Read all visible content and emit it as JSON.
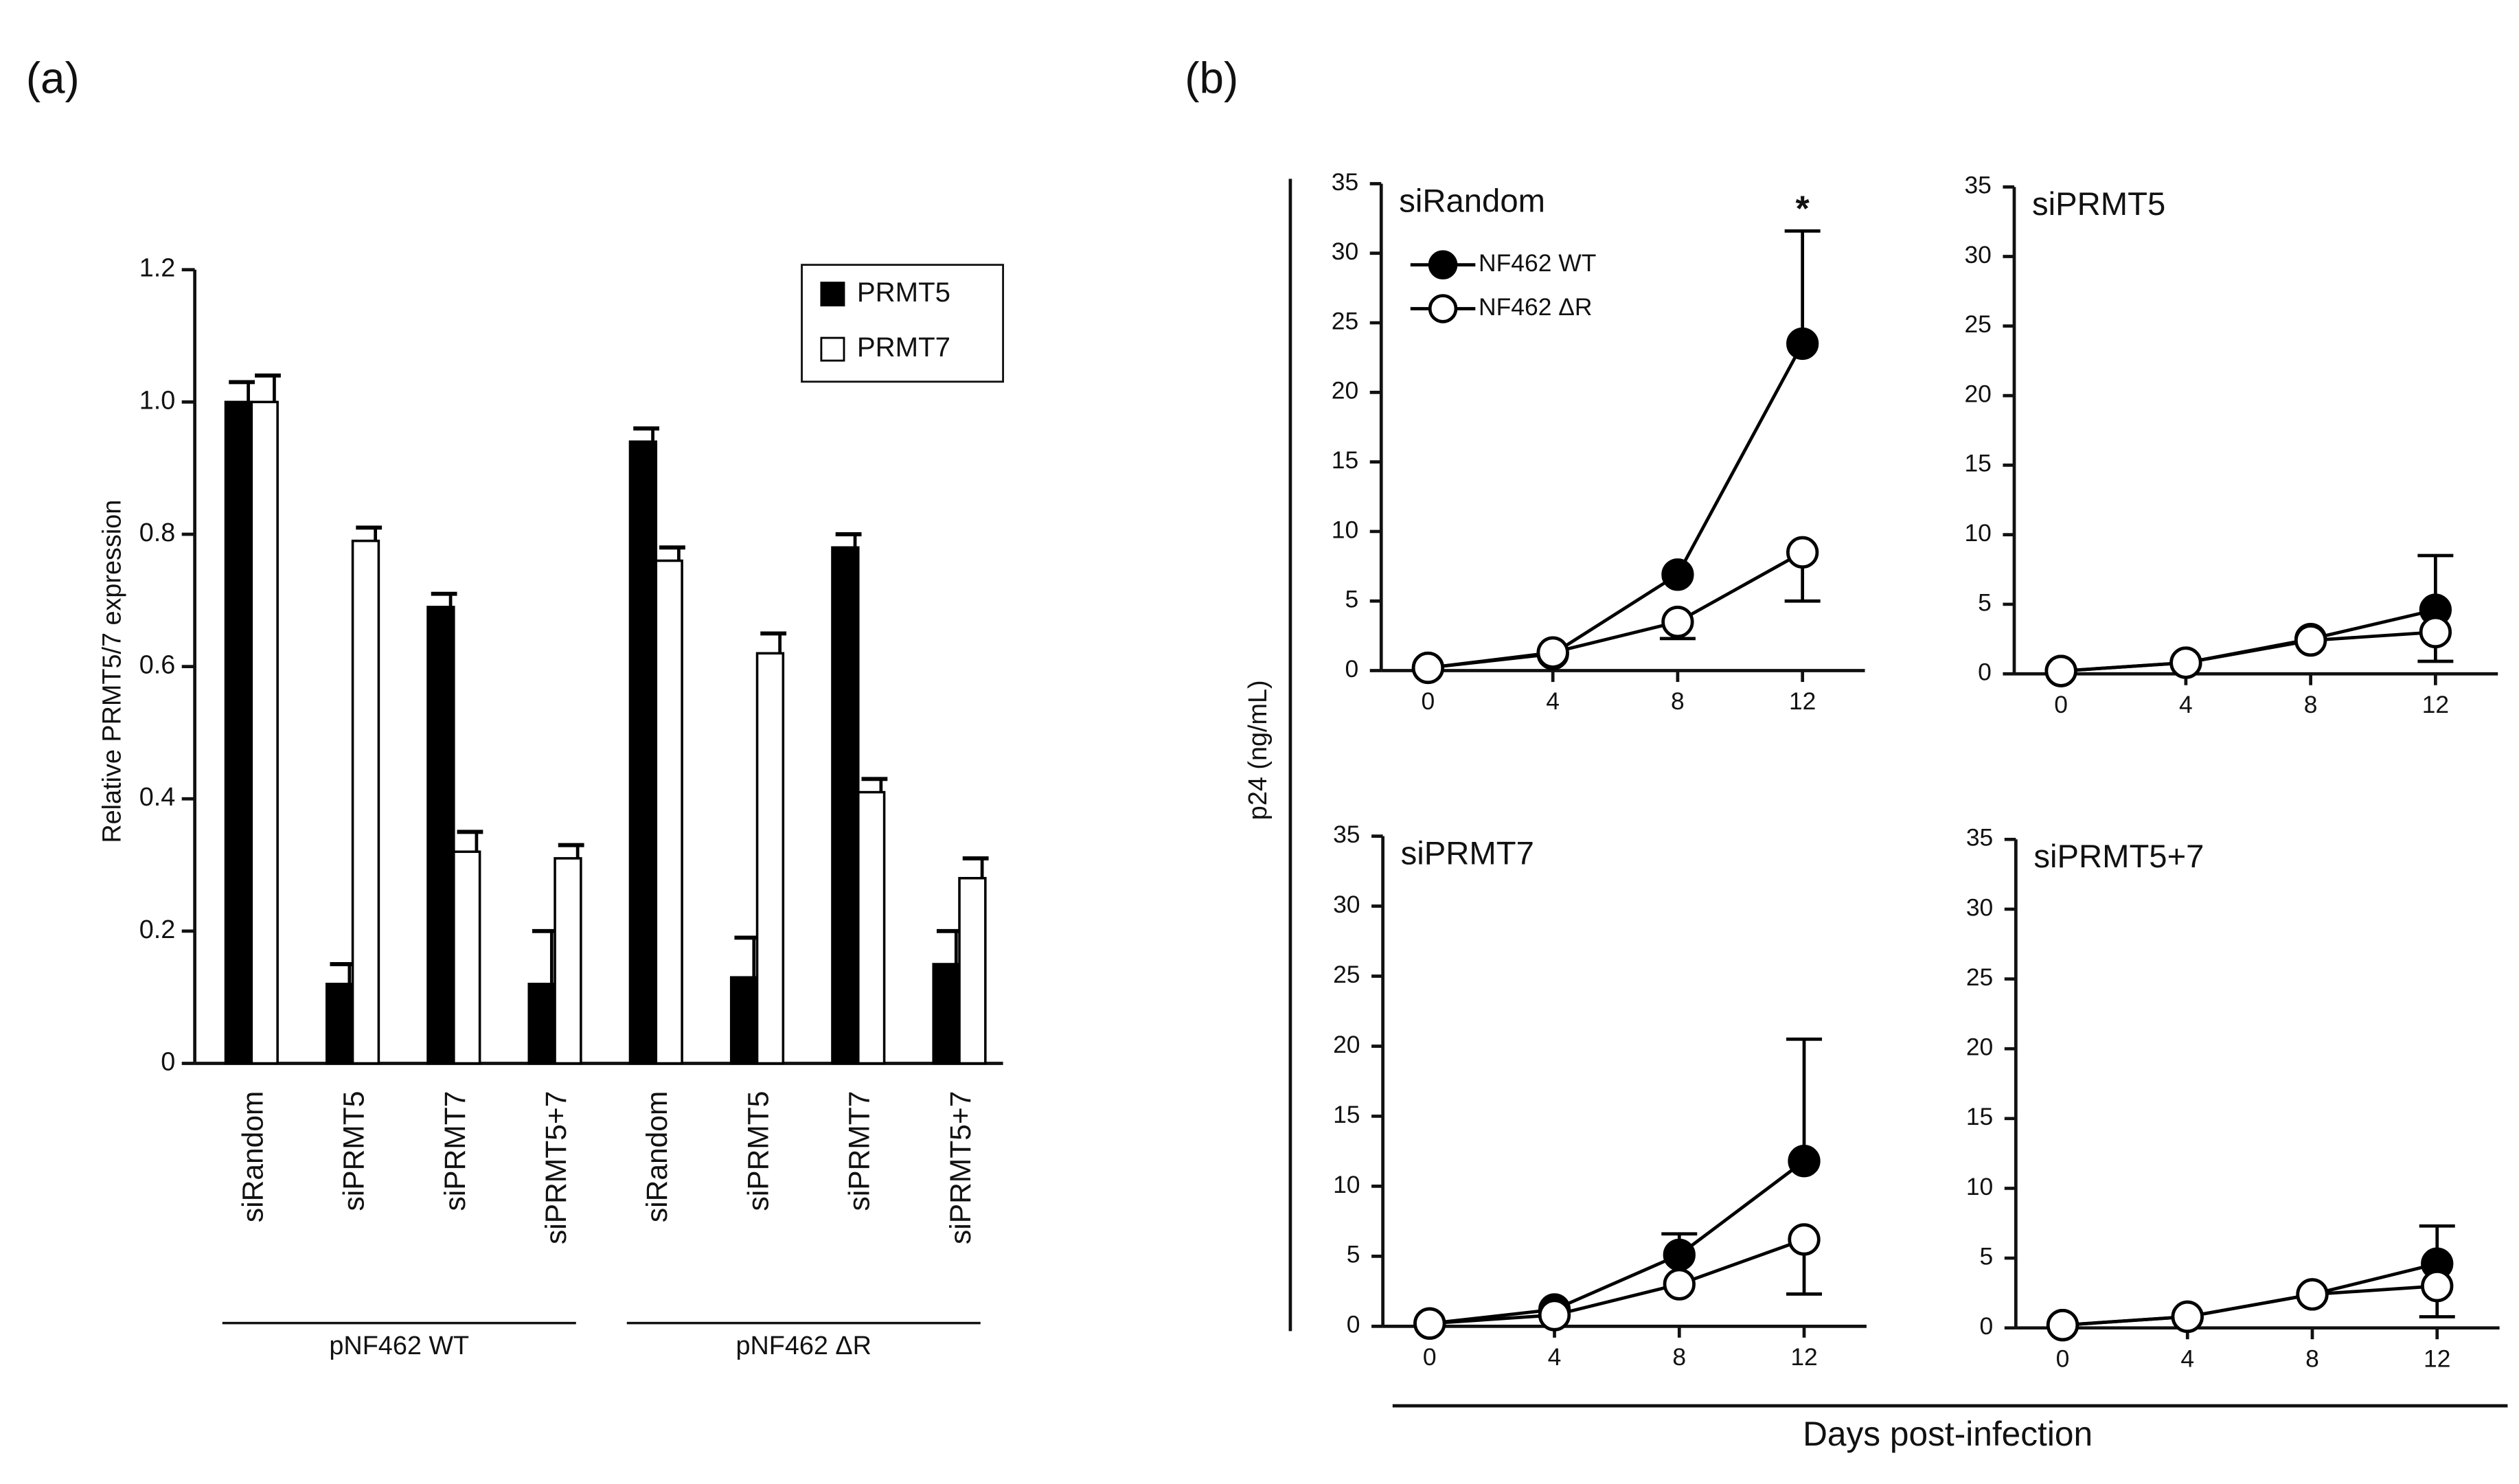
{
  "figure": {
    "panel_labels": [
      "(a)",
      "(b)"
    ],
    "ylabel": "p24 (ng/mL)",
    "xlabel": "Days post-infection"
  },
  "chart_data": [
    {
      "type": "bar",
      "ylabel": "Relative PRMT5/7 expression",
      "categories": [
        "siRandom",
        "siPRMT5",
        "siPRMT7",
        "siPRMT5+7",
        "siRandom",
        "siPRMT5",
        "siPRMT7",
        "siPRMT5+7"
      ],
      "groups": [
        "pNF462 WT",
        "pNF462 ΔR"
      ],
      "series": [
        {
          "name": "PRMT5",
          "color": "#000000",
          "values": [
            1.0,
            0.12,
            0.69,
            0.12,
            0.94,
            0.13,
            0.78,
            0.15
          ],
          "errors": [
            0.03,
            0.03,
            0.02,
            0.08,
            0.02,
            0.06,
            0.02,
            0.05
          ]
        },
        {
          "name": "PRMT7",
          "color": "#ffffff",
          "values": [
            1.0,
            0.79,
            0.32,
            0.31,
            0.76,
            0.62,
            0.41,
            0.28
          ],
          "errors": [
            0.04,
            0.02,
            0.03,
            0.02,
            0.02,
            0.03,
            0.02,
            0.03
          ]
        }
      ],
      "ylim": [
        0,
        1.2
      ],
      "yticks": [
        0,
        0.2,
        0.4,
        0.6,
        0.8,
        {
          "value": 1,
          "label": "1.0"
        },
        1.2
      ],
      "legend": "upper right"
    },
    {
      "type": "line",
      "title": "siRandom",
      "x": [
        0,
        4,
        8,
        12
      ],
      "annotations": [
        {
          "x": 12,
          "text": "*"
        }
      ],
      "series": [
        {
          "name": "NF462 WT",
          "color": "#000000",
          "values": [
            0.2,
            1.2,
            6.9,
            23.5
          ],
          "errors": [
            0,
            0,
            0,
            8.1
          ],
          "error_direction": "up"
        },
        {
          "name": "NF462 ΔR",
          "color": "#ffffff",
          "values": [
            0.2,
            1.3,
            3.5,
            8.5
          ],
          "errors": [
            0,
            0,
            1.2,
            3.5
          ],
          "error_direction": "down"
        }
      ],
      "xlim": [
        -1.5,
        14
      ],
      "xticks": [
        0,
        4,
        8,
        12
      ],
      "ylim": [
        0,
        35
      ],
      "yticks": [
        0,
        5,
        10,
        15,
        20,
        25,
        30,
        35
      ],
      "legend": "upper left"
    },
    {
      "type": "line",
      "title": "siPRMT5",
      "x": [
        0,
        4,
        8,
        12
      ],
      "series": [
        {
          "name": "NF462 WT",
          "color": "#000000",
          "values": [
            0.2,
            0.8,
            2.5,
            4.6
          ],
          "errors": [
            0,
            0,
            0,
            3.9
          ],
          "error_direction": "up"
        },
        {
          "name": "NF462 ΔR",
          "color": "#ffffff",
          "values": [
            0.2,
            0.8,
            2.4,
            3.0
          ],
          "errors": [
            0,
            0,
            0,
            2.1
          ],
          "error_direction": "down"
        }
      ],
      "xlim": [
        -1.5,
        14
      ],
      "xticks": [
        0,
        4,
        8,
        12
      ],
      "ylim": [
        0,
        35
      ],
      "yticks": [
        0,
        5,
        10,
        15,
        20,
        25,
        30,
        35
      ]
    },
    {
      "type": "line",
      "title": "siPRMT7",
      "x": [
        0,
        4,
        8,
        12
      ],
      "series": [
        {
          "name": "NF462 WT",
          "color": "#000000",
          "values": [
            0.2,
            1.2,
            5.1,
            11.8
          ],
          "errors": [
            0,
            0,
            1.5,
            8.7
          ],
          "error_direction": "up"
        },
        {
          "name": "NF462 ΔR",
          "color": "#ffffff",
          "values": [
            0.2,
            0.8,
            3.0,
            6.2
          ],
          "errors": [
            0,
            0,
            0,
            3.9
          ],
          "error_direction": "down"
        }
      ],
      "xlim": [
        -1.5,
        14
      ],
      "xticks": [
        0,
        4,
        8,
        12
      ],
      "ylim": [
        0,
        35
      ],
      "yticks": [
        0,
        5,
        10,
        15,
        20,
        25,
        30,
        35
      ]
    },
    {
      "type": "line",
      "title": "siPRMT5+7",
      "x": [
        0,
        4,
        8,
        12
      ],
      "series": [
        {
          "name": "NF462 WT",
          "color": "#000000",
          "values": [
            0.2,
            0.8,
            2.4,
            4.6
          ],
          "errors": [
            0,
            0,
            0,
            2.7
          ],
          "error_direction": "up"
        },
        {
          "name": "NF462 ΔR",
          "color": "#ffffff",
          "values": [
            0.2,
            0.8,
            2.4,
            3.0
          ],
          "errors": [
            0,
            0,
            0,
            2.2
          ],
          "error_direction": "down"
        }
      ],
      "xlim": [
        -1.5,
        14
      ],
      "xticks": [
        0,
        4,
        8,
        12
      ],
      "ylim": [
        0,
        35
      ],
      "yticks": [
        0,
        5,
        10,
        15,
        20,
        25,
        30,
        35
      ]
    }
  ]
}
